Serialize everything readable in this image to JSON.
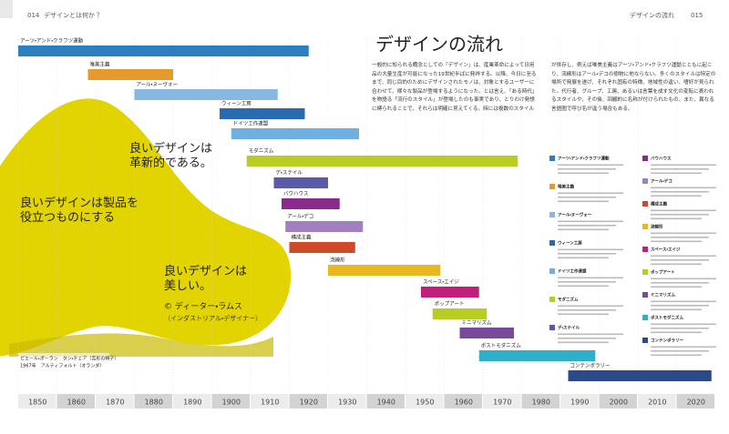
{
  "header": {
    "left_page": "014",
    "left_title": "デザインとは何か？",
    "right_title": "デザインの流れ",
    "right_page": "015"
  },
  "title": "デザインの流れ",
  "intro": "一般的に知られる概念としての「デザイン」は、産業革命によって日用品の大量生産が可能になった19世紀半ばに発祥する。以降、今日に至るまで、同じ目的のためにデザインされたモノは、対象とするユーザーに合わせて、様々な製品が登場するようになった。とは言え、「ある時代」を物語る「流行のスタイル」が登場したのも事実であり、とりわけ発想に縛られることで、それらは明確に見えてくる。時には複数のスタイルが併存し、例えば唯美主義はアーツ・アンド・クラフツ運動とともに起こり、流線形はアール・デコの樹物に他ならない。多くのスタイルは特定の場所で発展を遂げ、それぞれ固有の特徴、地域性の違い、嗜好が見られた。代行者、グループ、工房、あるいは言葉を成す文化の変転に表われるスタイルや、その後、回顧的に名称が付けられたもの、また、異なる言語圏で呼び名が違う場合もある。",
  "quotes": [
    "良いデザインは\n革新的である。",
    "良いデザインは製品を\n役立つものにする",
    "良いデザインは\n美しい。"
  ],
  "attribution": {
    "name": "© ディーター・ラムス",
    "role": "（インダストリアル・デザイナー）"
  },
  "caption": [
    "ピエール・ポーラン　タン・チェア（舌形の椅子）",
    "1967年　アルティフォルト（オランダ）"
  ],
  "timeline": {
    "xlim": [
      1850,
      2030
    ],
    "ticks": [
      1850,
      1860,
      1870,
      1880,
      1890,
      1900,
      1910,
      1920,
      1930,
      1940,
      1950,
      1960,
      1970,
      1980,
      1990,
      2000,
      2010,
      2020
    ],
    "movements": [
      {
        "name": "アーツ・アンド・クラフツ運動",
        "start": 1850,
        "end": 1925,
        "color": "#2b7fc1"
      },
      {
        "name": "唯美主義",
        "start": 1868,
        "end": 1890,
        "color": "#e79a2c"
      },
      {
        "name": "アール・ヌーヴォー",
        "start": 1880,
        "end": 1917,
        "color": "#86b8e0"
      },
      {
        "name": "ウィーン工房",
        "start": 1902,
        "end": 1924,
        "color": "#2a6ab0"
      },
      {
        "name": "ドイツ工作連盟",
        "start": 1905,
        "end": 1938,
        "color": "#6fb0e0"
      },
      {
        "name": "モダニズム",
        "start": 1909,
        "end": 1979,
        "color": "#b8cc22"
      },
      {
        "name": "デ・ステイル",
        "start": 1916,
        "end": 1930,
        "color": "#5a5aa8"
      },
      {
        "name": "バウハウス",
        "start": 1918,
        "end": 1933,
        "color": "#8a2a8a"
      },
      {
        "name": "アール・デコ",
        "start": 1919,
        "end": 1939,
        "color": "#a080c0"
      },
      {
        "name": "構成主義",
        "start": 1920,
        "end": 1937,
        "color": "#d04a2a"
      },
      {
        "name": "流線形",
        "start": 1930,
        "end": 1959,
        "color": "#e8b820"
      },
      {
        "name": "スペース・エイジ",
        "start": 1954,
        "end": 1969,
        "color": "#c0207a"
      },
      {
        "name": "ポップアート",
        "start": 1957,
        "end": 1971,
        "color": "#b8cc22"
      },
      {
        "name": "ミニマリズム",
        "start": 1964,
        "end": 1978,
        "color": "#7a4a9a"
      },
      {
        "name": "ポストモダニズム",
        "start": 1969,
        "end": 1999,
        "color": "#30b0c8"
      },
      {
        "name": "コンテンポラリー",
        "start": 1992,
        "end": 2029,
        "color": "#2a4a8a"
      }
    ]
  }
}
